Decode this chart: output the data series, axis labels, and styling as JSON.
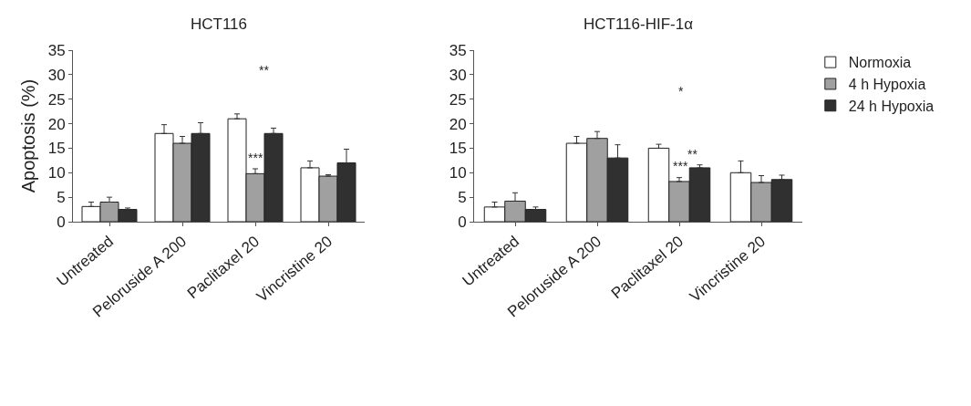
{
  "chart_data": [
    {
      "type": "bar",
      "title": "HCT116",
      "ylabel": "Apoptosis (%)",
      "categories": [
        "Untreated",
        "Peloruside A 200",
        "Paclitaxel 20",
        "Vincristine 20"
      ],
      "ylim": [
        0,
        35
      ],
      "yticks": [
        0,
        5,
        10,
        15,
        20,
        25,
        30,
        35
      ],
      "grid": false,
      "legend": false,
      "series": [
        {
          "color": "#ffffff",
          "values": [
            3.1,
            18,
            21,
            11
          ],
          "errors": [
            [
              3.1,
              4
            ],
            [
              18,
              19.8
            ],
            [
              21,
              22
            ],
            [
              11,
              12.4
            ]
          ]
        },
        {
          "color": "#a0a0a0",
          "values": [
            4,
            16,
            9.8,
            9.3
          ],
          "errors": [
            [
              4,
              5
            ],
            [
              16,
              17.4
            ],
            [
              9.8,
              10.8
            ],
            [
              9.3,
              9.6
            ]
          ]
        },
        {
          "color": "#303030",
          "values": [
            2.5,
            18,
            18,
            12
          ],
          "errors": [
            [
              2.5,
              2.8
            ],
            [
              18,
              20.2
            ],
            [
              18,
              19.1
            ],
            [
              12,
              14.8
            ]
          ]
        }
      ],
      "annotations": [
        "**",
        "***"
      ]
    },
    {
      "type": "bar",
      "title": "HCT116-HIF-1α",
      "categories": [
        "Untreated",
        "Peloruside A 200",
        "Paclitaxel 20",
        "Vincristine 20"
      ],
      "ylim": [
        0,
        35
      ],
      "yticks": [
        0,
        5,
        10,
        15,
        20,
        25,
        30,
        35
      ],
      "grid": false,
      "legend": "top right",
      "series": [
        {
          "name": "Normoxia",
          "color": "#ffffff",
          "values": [
            3,
            16,
            15,
            10
          ],
          "errors": [
            [
              3,
              4
            ],
            [
              16,
              17.4
            ],
            [
              15,
              15.8
            ],
            [
              10,
              12.4
            ]
          ]
        },
        {
          "name": "4 h Hypoxia",
          "color": "#a0a0a0",
          "values": [
            4.2,
            17,
            8.2,
            8
          ],
          "errors": [
            [
              4.2,
              5.9
            ],
            [
              17,
              18.4
            ],
            [
              8.2,
              9
            ],
            [
              8,
              9.4
            ]
          ]
        },
        {
          "name": "24 h Hypoxia",
          "color": "#303030",
          "values": [
            2.5,
            13,
            11,
            8.6
          ],
          "errors": [
            [
              2.5,
              3
            ],
            [
              13,
              15.7
            ],
            [
              11,
              11.6
            ],
            [
              8.6,
              9.5
            ]
          ]
        }
      ],
      "annotations": [
        "*",
        "***",
        "**"
      ]
    }
  ]
}
